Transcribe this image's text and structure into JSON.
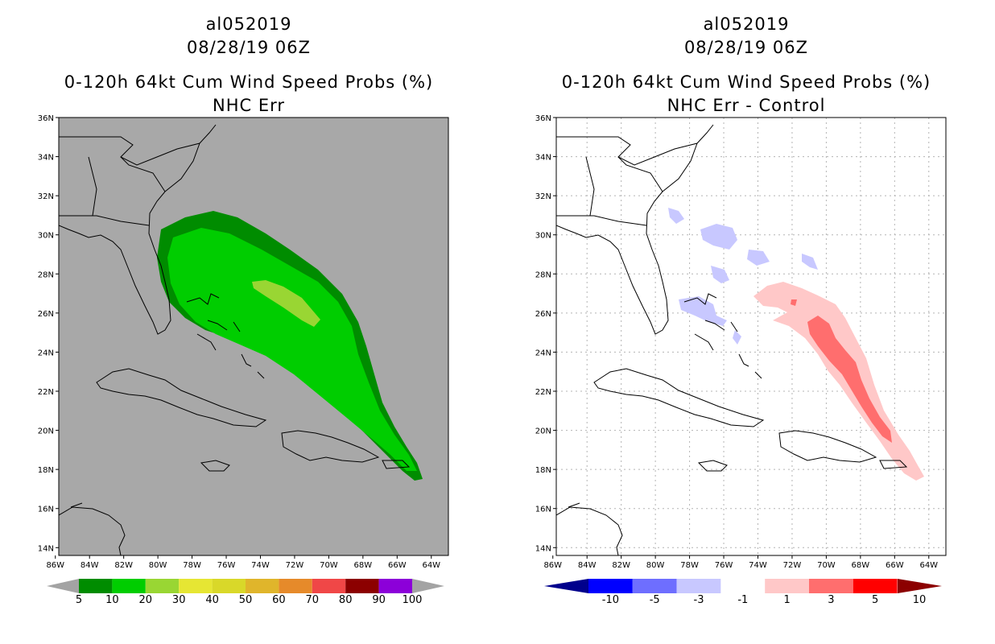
{
  "left": {
    "storm_id": "al052019",
    "datetime": "08/28/19 06Z",
    "product": "0-120h 64kt Cum Wind Speed Probs (%)",
    "subtitle": "NHC Err",
    "colorbar": {
      "labels": [
        "5",
        "10",
        "20",
        "30",
        "40",
        "50",
        "60",
        "70",
        "80",
        "90",
        "100"
      ],
      "colors": [
        "#008c00",
        "#00cd00",
        "#99d633",
        "#e6e633",
        "#d9d829",
        "#e0b52b",
        "#e68a2a",
        "#f04747",
        "#8c0000",
        "#8c00d9"
      ],
      "under_color": "#a3a3a3",
      "over_color": "#a3a3a3"
    },
    "background_color": "#a8a8a8"
  },
  "right": {
    "storm_id": "al052019",
    "datetime": "08/28/19 06Z",
    "product": "0-120h 64kt Cum Wind Speed Probs (%)",
    "subtitle": "NHC Err - Control",
    "colorbar": {
      "labels": [
        "-10",
        "-5",
        "-3",
        "-1",
        "1",
        "3",
        "5",
        "10"
      ],
      "colors": [
        "#0000ff",
        "#6e6eff",
        "#c8c8ff",
        "#ffffff",
        "#ffc8c8",
        "#ff6e6e",
        "#ff0000"
      ],
      "under_color": "#00008c",
      "over_color": "#8c0000"
    },
    "background_color": "#ffffff"
  },
  "axes": {
    "lon_labels": [
      "86W",
      "84W",
      "82W",
      "80W",
      "78W",
      "76W",
      "74W",
      "72W",
      "70W",
      "68W",
      "66W",
      "64W"
    ],
    "lat_labels": [
      "36N",
      "34N",
      "32N",
      "30N",
      "28N",
      "26N",
      "24N",
      "22N",
      "20N",
      "18N",
      "16N",
      "14N"
    ]
  }
}
